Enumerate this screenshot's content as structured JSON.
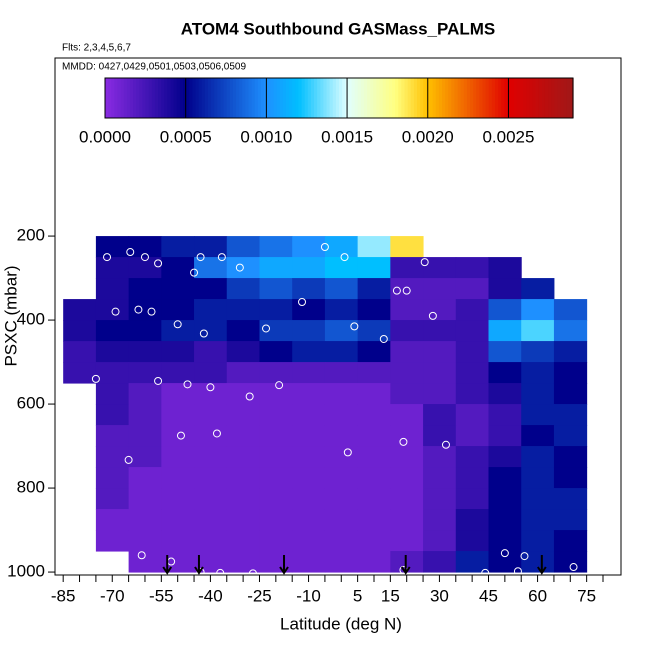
{
  "chart_data": {
    "type": "heatmap",
    "title": "ATOM4 Southbound GASMass_PALMS",
    "subtitle": "Flts: 2,3,4,5,6,7",
    "annotation": "MMDD: 0427,0429,0501,0503,0506,0509",
    "x_label": "Latitude (deg N)",
    "y_label": "PSXC (mbar)",
    "xlim": [
      -87.5,
      85.5
    ],
    "ylim": [
      1007,
      -224
    ],
    "xticks": [
      -85,
      -70,
      -55,
      -40,
      -25,
      -10,
      5,
      15,
      30,
      45,
      60,
      75
    ],
    "xminor_ticks": [
      -80,
      -75,
      -65,
      -60,
      -50,
      -45,
      -35,
      -30,
      -20,
      -15,
      -5,
      0,
      10,
      20,
      25,
      35,
      40,
      50,
      55,
      65,
      70,
      80
    ],
    "yticks": [
      200,
      400,
      600,
      800,
      1000
    ],
    "x": [
      -80,
      -70,
      -60,
      -50,
      -40,
      -30,
      -20,
      -10,
      0,
      10,
      20,
      30,
      40,
      50,
      60,
      70
    ],
    "x_width": 10,
    "y": [
      200,
      250,
      300,
      350,
      400,
      450,
      500,
      550,
      600,
      650,
      700,
      750,
      800,
      850,
      900,
      950
    ],
    "y_height": 50,
    "z": [
      [
        null,
        0.0005,
        0.0005,
        0.0006,
        0.0006,
        0.0008,
        0.0009,
        0.001,
        0.0011,
        0.0014,
        0.0019,
        null,
        null,
        null,
        null,
        null
      ],
      [
        null,
        0.0004,
        0.0004,
        0.0005,
        0.0009,
        0.001,
        0.0011,
        0.0011,
        0.0012,
        0.0012,
        0.0003,
        0.0003,
        0.0003,
        0.0004,
        null,
        null
      ],
      [
        null,
        0.0004,
        0.0005,
        0.0005,
        0.0005,
        0.0007,
        0.0008,
        0.0007,
        0.0008,
        0.0006,
        0.0002,
        0.0002,
        0.0002,
        0.0004,
        0.0006,
        null
      ],
      [
        0.0004,
        0.0004,
        0.0005,
        0.0005,
        0.0006,
        0.0006,
        0.0006,
        0.0005,
        0.0006,
        0.0005,
        0.0002,
        0.0002,
        0.0003,
        0.0008,
        0.001,
        0.0008
      ],
      [
        0.0004,
        0.0005,
        0.0005,
        0.0006,
        0.0006,
        0.0005,
        0.0007,
        0.0007,
        0.0008,
        0.0007,
        0.0003,
        0.0003,
        0.0003,
        0.0011,
        0.0013,
        0.0009
      ],
      [
        0.0003,
        0.0004,
        0.0004,
        0.0004,
        0.0003,
        0.0004,
        0.0005,
        0.0006,
        0.0006,
        0.0005,
        0.0002,
        0.0002,
        0.0003,
        0.0008,
        0.0007,
        0.0006
      ],
      [
        0.0003,
        0.0003,
        0.0003,
        0.0003,
        0.0003,
        0.0002,
        0.0002,
        0.0002,
        0.0002,
        0.0002,
        0.0002,
        0.0002,
        0.0003,
        0.0005,
        0.0006,
        0.0005
      ],
      [
        null,
        0.0003,
        0.0002,
        0.0001,
        0.0001,
        0.0001,
        0.0001,
        0.0001,
        0.0001,
        0.0001,
        0.0002,
        0.0002,
        0.0003,
        0.0004,
        0.0006,
        0.0005
      ],
      [
        null,
        0.0003,
        0.0002,
        0.0001,
        0.0001,
        0.0001,
        0.0001,
        0.0001,
        0.0001,
        0.0001,
        0.0001,
        0.0003,
        0.0002,
        0.0003,
        0.0006,
        0.0006
      ],
      [
        null,
        0.0002,
        0.0002,
        0.0001,
        0.0001,
        0.0001,
        0.0001,
        0.0001,
        0.0001,
        0.0001,
        0.0001,
        0.0003,
        0.0002,
        0.0003,
        0.0005,
        0.0006
      ],
      [
        null,
        0.0002,
        0.0002,
        0.0001,
        0.0001,
        0.0001,
        0.0001,
        0.0001,
        0.0001,
        0.0001,
        0.0001,
        0.0002,
        0.0003,
        0.0004,
        0.0006,
        0.0005
      ],
      [
        null,
        0.0002,
        0.0001,
        0.0001,
        0.0001,
        0.0001,
        0.0001,
        0.0001,
        0.0001,
        0.0001,
        0.0001,
        0.0002,
        0.0003,
        0.0005,
        0.0006,
        0.0005
      ],
      [
        null,
        0.0002,
        0.0001,
        0.0001,
        0.0001,
        0.0001,
        0.0001,
        0.0001,
        0.0001,
        0.0001,
        0.0001,
        0.0002,
        0.0003,
        0.0005,
        0.0006,
        0.0006
      ],
      [
        null,
        0.0001,
        0.0001,
        0.0001,
        0.0001,
        0.0001,
        0.0001,
        0.0001,
        0.0001,
        0.0001,
        0.0001,
        0.0002,
        0.0004,
        0.0005,
        0.0006,
        0.0006
      ],
      [
        null,
        0.0001,
        0.0001,
        0.0001,
        0.0001,
        0.0001,
        0.0001,
        0.0001,
        0.0001,
        0.0001,
        0.0001,
        0.0002,
        0.0004,
        0.0005,
        0.0006,
        0.0005
      ],
      [
        null,
        null,
        0.0001,
        0.0001,
        0.0001,
        0.0001,
        0.0001,
        0.0001,
        0.0001,
        0.0001,
        0.0002,
        0.0003,
        0.0006,
        0.0005,
        0.0006,
        0.0005
      ]
    ],
    "colorbar_lim": [
      0,
      0.0029
    ],
    "colorbar_ticks": [
      {
        "value": 0,
        "label": "0.0000"
      },
      {
        "value": 0.0005,
        "label": "0.0005"
      },
      {
        "value": 0.001,
        "label": "0.0010"
      },
      {
        "value": 0.0015,
        "label": "0.0015"
      },
      {
        "value": 0.002,
        "label": "0.0020"
      },
      {
        "value": 0.0025,
        "label": "0.0025"
      }
    ],
    "colorscale": [
      [
        0,
        "#8a2be2"
      ],
      [
        0.0005,
        "#00008b"
      ],
      [
        0.001,
        "#1e90ff"
      ],
      [
        0.0012,
        "#00bfff"
      ],
      [
        0.0015,
        "#e0ffff"
      ],
      [
        0.0018,
        "#ffff80"
      ],
      [
        0.002,
        "#ffc000"
      ],
      [
        0.0025,
        "#e00000"
      ],
      [
        0.0029,
        "#a01818"
      ]
    ],
    "points": {
      "x": [
        -71.6,
        -64.5,
        -60,
        -43,
        -36.5,
        -5,
        1,
        25.5,
        -56,
        -45,
        -31,
        -12,
        17,
        20,
        -69,
        -62,
        -58,
        -50,
        -42,
        -23,
        4,
        13,
        28,
        -75,
        -56,
        -47,
        -40,
        -28,
        -19,
        2,
        19,
        32,
        -49,
        -38,
        -65,
        -61,
        50,
        56,
        -52,
        -43,
        -37,
        -27,
        19,
        44,
        54,
        71
      ],
      "y": [
        250,
        238,
        250,
        250,
        250,
        226,
        250,
        262,
        265,
        287,
        275,
        357,
        330,
        330,
        380,
        375,
        380,
        410,
        432,
        420,
        415,
        445,
        390,
        540,
        545,
        553,
        560,
        582,
        555,
        715,
        690,
        697,
        675,
        670,
        733,
        960,
        955,
        962,
        975,
        1000,
        1002,
        1003,
        995,
        1002,
        998,
        988
      ],
      "color": "#ffffff"
    },
    "arrows_x": [
      -53.2,
      -43.5,
      -17.5,
      19.7,
      61.3
    ]
  }
}
